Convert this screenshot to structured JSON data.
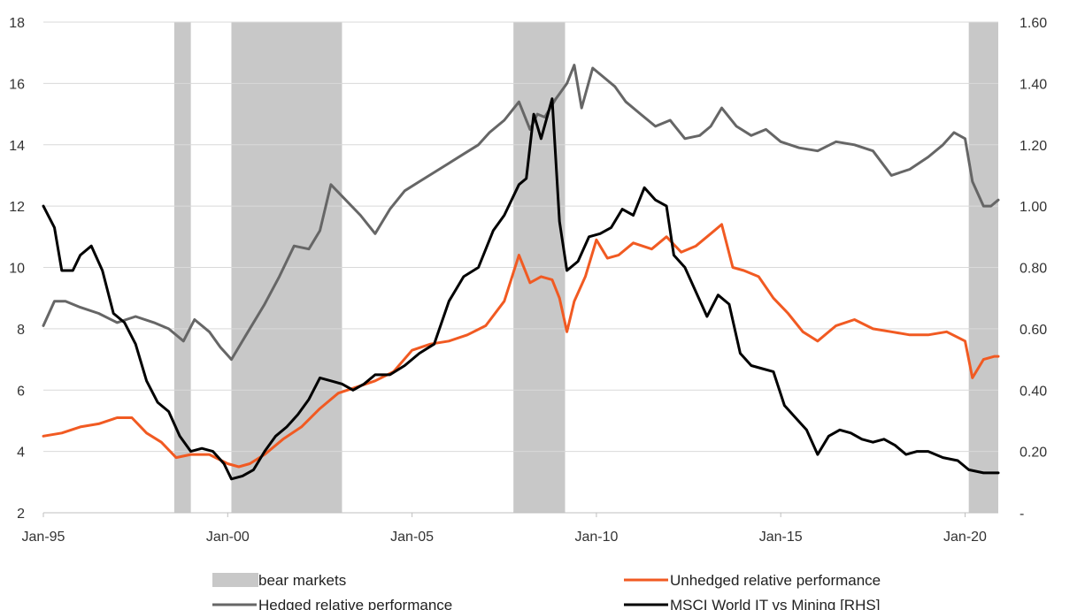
{
  "chart_data": {
    "type": "line",
    "x_ticks": [
      "Jan-95",
      "Jan-00",
      "Jan-05",
      "Jan-10",
      "Jan-15",
      "Jan-20"
    ],
    "x_range": [
      1995.0,
      2020.9
    ],
    "y_left": {
      "ticks": [
        "2",
        "4",
        "6",
        "8",
        "10",
        "12",
        "14",
        "16",
        "18"
      ],
      "range": [
        2,
        18
      ]
    },
    "y_right": {
      "ticks": [
        "-",
        "0.20",
        "0.40",
        "0.60",
        "0.80",
        "1.00",
        "1.20",
        "1.40",
        "1.60"
      ],
      "range": [
        0,
        1.6
      ]
    },
    "gridlines": true,
    "legend_position": "bottom",
    "bear_markets": [
      [
        1998.55,
        1999.0
      ],
      [
        2000.1,
        2003.1
      ],
      [
        2007.75,
        2009.15
      ],
      [
        2020.1,
        2021.1
      ]
    ],
    "series": [
      {
        "name": "Hedged relative performance",
        "axis": "left",
        "color": "#666666",
        "points": [
          [
            1995.0,
            8.1
          ],
          [
            1995.3,
            8.9
          ],
          [
            1995.6,
            8.9
          ],
          [
            1996.0,
            8.7
          ],
          [
            1996.5,
            8.5
          ],
          [
            1997.0,
            8.2
          ],
          [
            1997.5,
            8.4
          ],
          [
            1998.0,
            8.2
          ],
          [
            1998.4,
            8.0
          ],
          [
            1998.8,
            7.6
          ],
          [
            1999.1,
            8.3
          ],
          [
            1999.5,
            7.9
          ],
          [
            1999.8,
            7.4
          ],
          [
            2000.1,
            7.0
          ],
          [
            2000.5,
            7.8
          ],
          [
            2001.0,
            8.8
          ],
          [
            2001.4,
            9.7
          ],
          [
            2001.8,
            10.7
          ],
          [
            2002.2,
            10.6
          ],
          [
            2002.5,
            11.2
          ],
          [
            2002.8,
            12.7
          ],
          [
            2003.2,
            12.2
          ],
          [
            2003.6,
            11.7
          ],
          [
            2004.0,
            11.1
          ],
          [
            2004.4,
            11.9
          ],
          [
            2004.8,
            12.5
          ],
          [
            2005.2,
            12.8
          ],
          [
            2005.6,
            13.1
          ],
          [
            2006.0,
            13.4
          ],
          [
            2006.4,
            13.7
          ],
          [
            2006.8,
            14.0
          ],
          [
            2007.1,
            14.4
          ],
          [
            2007.5,
            14.8
          ],
          [
            2007.9,
            15.4
          ],
          [
            2008.2,
            14.5
          ],
          [
            2008.4,
            15.0
          ],
          [
            2008.6,
            14.9
          ],
          [
            2008.9,
            15.5
          ],
          [
            2009.2,
            16.0
          ],
          [
            2009.4,
            16.6
          ],
          [
            2009.6,
            15.2
          ],
          [
            2009.9,
            16.5
          ],
          [
            2010.2,
            16.2
          ],
          [
            2010.5,
            15.9
          ],
          [
            2010.8,
            15.4
          ],
          [
            2011.2,
            15.0
          ],
          [
            2011.6,
            14.6
          ],
          [
            2012.0,
            14.8
          ],
          [
            2012.4,
            14.2
          ],
          [
            2012.8,
            14.3
          ],
          [
            2013.1,
            14.6
          ],
          [
            2013.4,
            15.2
          ],
          [
            2013.8,
            14.6
          ],
          [
            2014.2,
            14.3
          ],
          [
            2014.6,
            14.5
          ],
          [
            2015.0,
            14.1
          ],
          [
            2015.5,
            13.9
          ],
          [
            2016.0,
            13.8
          ],
          [
            2016.5,
            14.1
          ],
          [
            2017.0,
            14.0
          ],
          [
            2017.5,
            13.8
          ],
          [
            2018.0,
            13.0
          ],
          [
            2018.5,
            13.2
          ],
          [
            2019.0,
            13.6
          ],
          [
            2019.4,
            14.0
          ],
          [
            2019.7,
            14.4
          ],
          [
            2020.0,
            14.2
          ],
          [
            2020.2,
            12.8
          ],
          [
            2020.5,
            12.0
          ],
          [
            2020.7,
            12.0
          ],
          [
            2020.9,
            12.2
          ]
        ]
      },
      {
        "name": "Unhedged relative performance",
        "axis": "left",
        "color": "#f15a22",
        "points": [
          [
            1995.0,
            4.5
          ],
          [
            1995.5,
            4.6
          ],
          [
            1996.0,
            4.8
          ],
          [
            1996.5,
            4.9
          ],
          [
            1997.0,
            5.1
          ],
          [
            1997.4,
            5.1
          ],
          [
            1997.8,
            4.6
          ],
          [
            1998.2,
            4.3
          ],
          [
            1998.6,
            3.8
          ],
          [
            1999.0,
            3.9
          ],
          [
            1999.5,
            3.9
          ],
          [
            2000.0,
            3.6
          ],
          [
            2000.3,
            3.5
          ],
          [
            2000.6,
            3.6
          ],
          [
            2001.0,
            3.9
          ],
          [
            2001.5,
            4.4
          ],
          [
            2002.0,
            4.8
          ],
          [
            2002.5,
            5.4
          ],
          [
            2003.0,
            5.9
          ],
          [
            2003.5,
            6.1
          ],
          [
            2004.0,
            6.3
          ],
          [
            2004.5,
            6.6
          ],
          [
            2005.0,
            7.3
          ],
          [
            2005.5,
            7.5
          ],
          [
            2006.0,
            7.6
          ],
          [
            2006.5,
            7.8
          ],
          [
            2007.0,
            8.1
          ],
          [
            2007.5,
            8.9
          ],
          [
            2007.9,
            10.4
          ],
          [
            2008.2,
            9.5
          ],
          [
            2008.5,
            9.7
          ],
          [
            2008.8,
            9.6
          ],
          [
            2009.0,
            9.0
          ],
          [
            2009.2,
            7.9
          ],
          [
            2009.4,
            8.9
          ],
          [
            2009.7,
            9.7
          ],
          [
            2010.0,
            10.9
          ],
          [
            2010.3,
            10.3
          ],
          [
            2010.6,
            10.4
          ],
          [
            2011.0,
            10.8
          ],
          [
            2011.5,
            10.6
          ],
          [
            2011.9,
            11.0
          ],
          [
            2012.3,
            10.5
          ],
          [
            2012.7,
            10.7
          ],
          [
            2013.1,
            11.1
          ],
          [
            2013.4,
            11.4
          ],
          [
            2013.7,
            10.0
          ],
          [
            2014.0,
            9.9
          ],
          [
            2014.4,
            9.7
          ],
          [
            2014.8,
            9.0
          ],
          [
            2015.2,
            8.5
          ],
          [
            2015.6,
            7.9
          ],
          [
            2016.0,
            7.6
          ],
          [
            2016.5,
            8.1
          ],
          [
            2017.0,
            8.3
          ],
          [
            2017.5,
            8.0
          ],
          [
            2018.0,
            7.9
          ],
          [
            2018.5,
            7.8
          ],
          [
            2019.0,
            7.8
          ],
          [
            2019.5,
            7.9
          ],
          [
            2020.0,
            7.6
          ],
          [
            2020.2,
            6.4
          ],
          [
            2020.5,
            7.0
          ],
          [
            2020.8,
            7.1
          ],
          [
            2020.9,
            7.1
          ]
        ]
      },
      {
        "name": "MSCI World IT vs Mining [RHS]",
        "axis": "right",
        "color": "#000000",
        "points": [
          [
            1995.0,
            1.0
          ],
          [
            1995.3,
            0.93
          ],
          [
            1995.5,
            0.79
          ],
          [
            1995.8,
            0.79
          ],
          [
            1996.0,
            0.84
          ],
          [
            1996.3,
            0.87
          ],
          [
            1996.6,
            0.79
          ],
          [
            1996.9,
            0.65
          ],
          [
            1997.2,
            0.62
          ],
          [
            1997.5,
            0.55
          ],
          [
            1997.8,
            0.43
          ],
          [
            1998.1,
            0.36
          ],
          [
            1998.4,
            0.33
          ],
          [
            1998.7,
            0.25
          ],
          [
            1999.0,
            0.2
          ],
          [
            1999.3,
            0.21
          ],
          [
            1999.6,
            0.2
          ],
          [
            1999.9,
            0.16
          ],
          [
            2000.1,
            0.11
          ],
          [
            2000.4,
            0.12
          ],
          [
            2000.7,
            0.14
          ],
          [
            2001.0,
            0.2
          ],
          [
            2001.3,
            0.25
          ],
          [
            2001.6,
            0.28
          ],
          [
            2001.9,
            0.32
          ],
          [
            2002.2,
            0.37
          ],
          [
            2002.5,
            0.44
          ],
          [
            2002.8,
            0.43
          ],
          [
            2003.1,
            0.42
          ],
          [
            2003.4,
            0.4
          ],
          [
            2003.7,
            0.42
          ],
          [
            2004.0,
            0.45
          ],
          [
            2004.4,
            0.45
          ],
          [
            2004.8,
            0.48
          ],
          [
            2005.2,
            0.52
          ],
          [
            2005.6,
            0.55
          ],
          [
            2006.0,
            0.69
          ],
          [
            2006.4,
            0.77
          ],
          [
            2006.8,
            0.8
          ],
          [
            2007.2,
            0.92
          ],
          [
            2007.5,
            0.97
          ],
          [
            2007.9,
            1.07
          ],
          [
            2008.1,
            1.09
          ],
          [
            2008.3,
            1.3
          ],
          [
            2008.5,
            1.22
          ],
          [
            2008.8,
            1.35
          ],
          [
            2009.0,
            0.95
          ],
          [
            2009.2,
            0.79
          ],
          [
            2009.5,
            0.82
          ],
          [
            2009.8,
            0.9
          ],
          [
            2010.1,
            0.91
          ],
          [
            2010.4,
            0.93
          ],
          [
            2010.7,
            0.99
          ],
          [
            2011.0,
            0.97
          ],
          [
            2011.3,
            1.06
          ],
          [
            2011.6,
            1.02
          ],
          [
            2011.9,
            1.0
          ],
          [
            2012.1,
            0.84
          ],
          [
            2012.4,
            0.8
          ],
          [
            2012.7,
            0.72
          ],
          [
            2013.0,
            0.64
          ],
          [
            2013.3,
            0.71
          ],
          [
            2013.6,
            0.68
          ],
          [
            2013.9,
            0.52
          ],
          [
            2014.2,
            0.48
          ],
          [
            2014.5,
            0.47
          ],
          [
            2014.8,
            0.46
          ],
          [
            2015.1,
            0.35
          ],
          [
            2015.4,
            0.31
          ],
          [
            2015.7,
            0.27
          ],
          [
            2016.0,
            0.19
          ],
          [
            2016.3,
            0.25
          ],
          [
            2016.6,
            0.27
          ],
          [
            2016.9,
            0.26
          ],
          [
            2017.2,
            0.24
          ],
          [
            2017.5,
            0.23
          ],
          [
            2017.8,
            0.24
          ],
          [
            2018.1,
            0.22
          ],
          [
            2018.4,
            0.19
          ],
          [
            2018.7,
            0.2
          ],
          [
            2019.0,
            0.2
          ],
          [
            2019.4,
            0.18
          ],
          [
            2019.8,
            0.17
          ],
          [
            2020.1,
            0.14
          ],
          [
            2020.5,
            0.13
          ],
          [
            2020.9,
            0.13
          ]
        ]
      }
    ],
    "legend": [
      {
        "label": "bear markets",
        "kind": "band",
        "color": "#c8c8c8"
      },
      {
        "label": "Unhedged relative performance",
        "kind": "line",
        "color": "#f15a22"
      },
      {
        "label": "Hedged relative performance",
        "kind": "line",
        "color": "#666666"
      },
      {
        "label": "MSCI World IT vs Mining [RHS]",
        "kind": "line",
        "color": "#000000"
      }
    ]
  }
}
